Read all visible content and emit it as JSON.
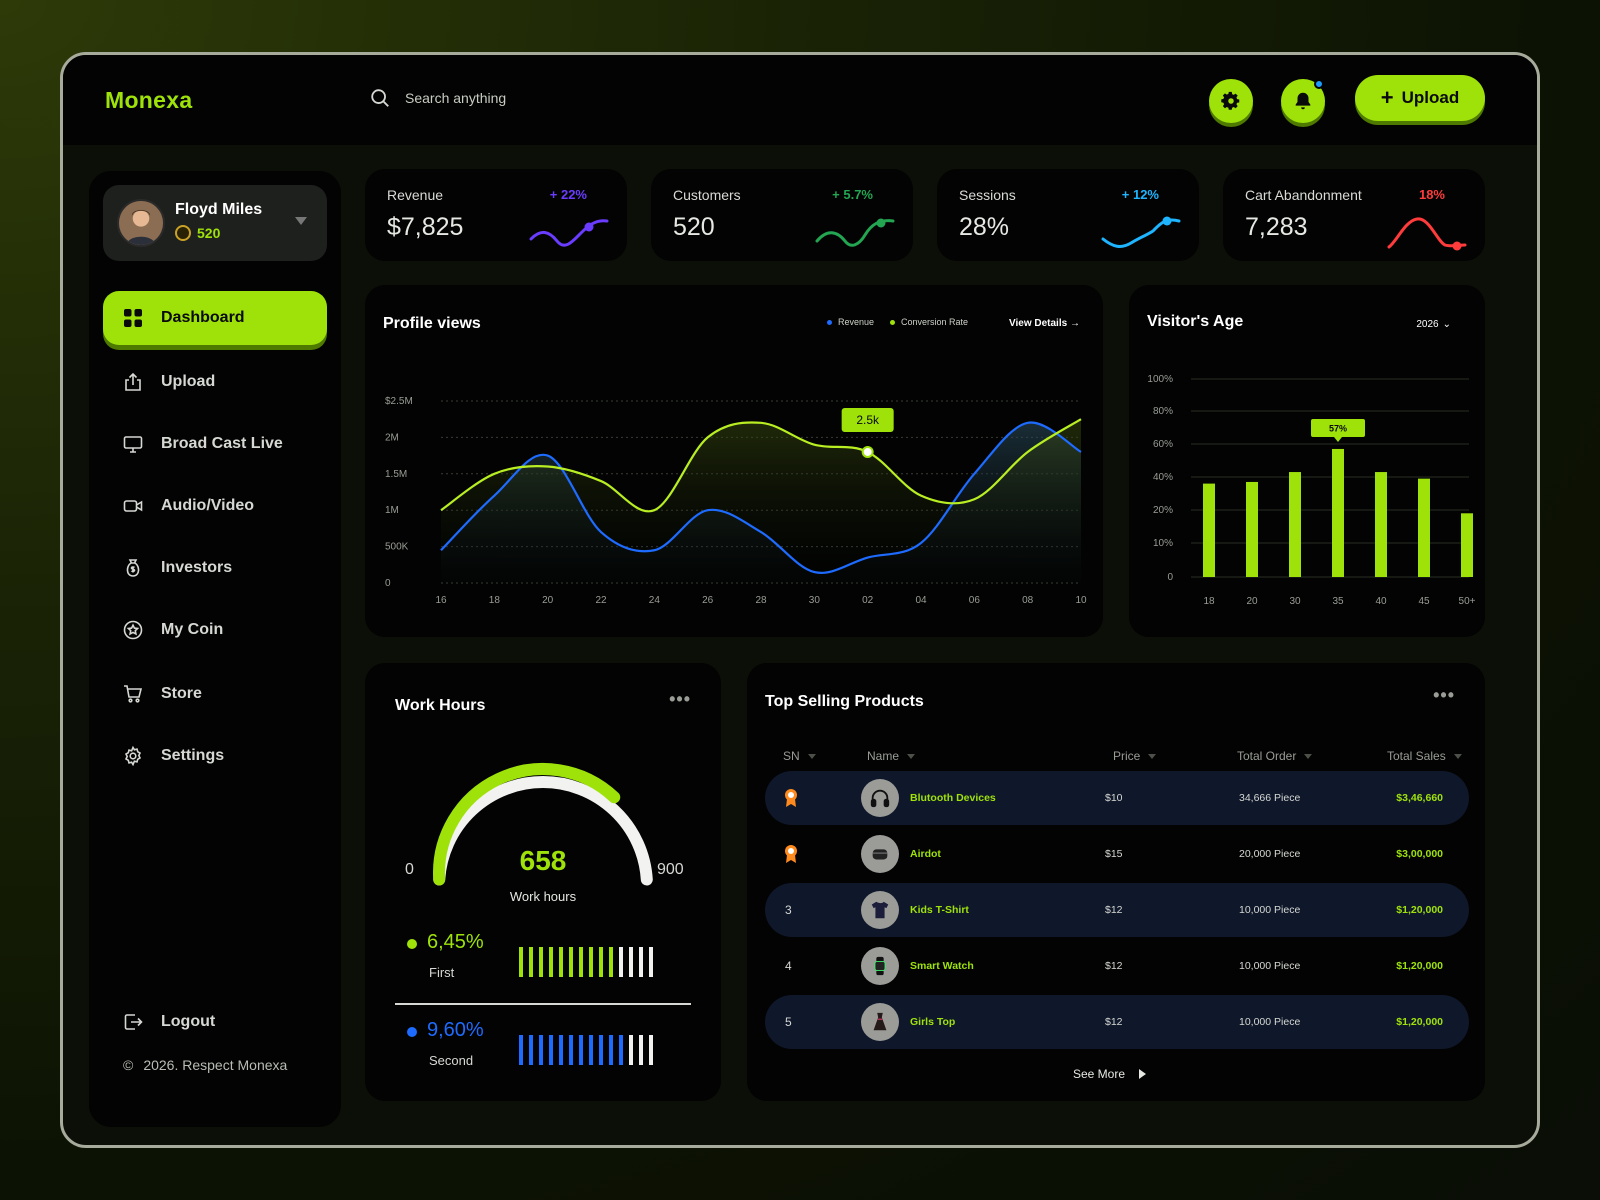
{
  "brand": "Monexa",
  "search": {
    "placeholder": "Search anything"
  },
  "header": {
    "upload_label": "Upload"
  },
  "colors": {
    "accent": "#9ee20a",
    "blue": "#1e6bff",
    "red": "#ff3b3b",
    "cyan": "#1eb4ff",
    "violet": "#6a3cff",
    "green": "#23a552"
  },
  "profile": {
    "name": "Floyd Miles",
    "coins": "520"
  },
  "nav": [
    {
      "label": "Dashboard",
      "icon": "grid-icon",
      "active": true
    },
    {
      "label": "Upload",
      "icon": "upload-icon"
    },
    {
      "label": "Broad Cast Live",
      "icon": "monitor-icon"
    },
    {
      "label": "Audio/Video",
      "icon": "video-icon"
    },
    {
      "label": "Investors",
      "icon": "money-bag-icon"
    },
    {
      "label": "My Coin",
      "icon": "coin-star-icon"
    },
    {
      "label": "Store",
      "icon": "cart-icon"
    },
    {
      "label": "Settings",
      "icon": "gear-icon"
    }
  ],
  "logout_label": "Logout",
  "copyright": "2026. Respect Monexa",
  "stats": [
    {
      "label": "Revenue",
      "value": "$7,825",
      "change": "+ 22%",
      "color": "#6a3cff"
    },
    {
      "label": "Customers",
      "value": "520",
      "change": "+ 5.7%",
      "color": "#23a552"
    },
    {
      "label": "Sessions",
      "value": "28%",
      "change": "+ 12%",
      "color": "#1eb4ff"
    },
    {
      "label": "Cart Abandonment",
      "value": "7,283",
      "change": "18%",
      "color": "#ff3b3b"
    }
  ],
  "profile_views": {
    "title": "Profile views",
    "legend": [
      "Revenue",
      "Conversion Rate"
    ],
    "view_details": "View Details",
    "tooltip": "2.5k"
  },
  "visitors_age": {
    "title": "Visitor's Age",
    "year": "2026",
    "tooltip": "57%"
  },
  "chart_data": [
    {
      "type": "area",
      "title": "Profile views",
      "x": [
        "16",
        "18",
        "20",
        "22",
        "24",
        "26",
        "28",
        "30",
        "02",
        "04",
        "06",
        "08",
        "10"
      ],
      "y_ticks": [
        "0",
        "500K",
        "1M",
        "1.5M",
        "2M",
        "$2.5M"
      ],
      "ylim": [
        0,
        2500000
      ],
      "series": [
        {
          "name": "Revenue",
          "values": [
            450000,
            1200000,
            1750000,
            700000,
            450000,
            1000000,
            700000,
            150000,
            350000,
            550000,
            1500000,
            2200000,
            1800000
          ]
        },
        {
          "name": "Conversion Rate",
          "values": [
            1000000,
            1500000,
            1600000,
            1400000,
            1000000,
            2000000,
            2200000,
            1900000,
            1800000,
            1200000,
            1150000,
            1800000,
            2250000
          ]
        }
      ],
      "legend": "top-right",
      "grid": true
    },
    {
      "type": "bar",
      "title": "Visitor's Age",
      "categories": [
        "18",
        "20",
        "30",
        "35",
        "40",
        "45",
        "50+"
      ],
      "values": [
        36,
        37,
        43,
        57,
        43,
        39,
        19
      ],
      "y_ticks": [
        "0",
        "10%",
        "20%",
        "40%",
        "60%",
        "80%",
        "100%"
      ],
      "ylim": [
        0,
        100
      ],
      "grid": true
    }
  ],
  "work_hours": {
    "title": "Work Hours",
    "value": "658",
    "label": "Work hours",
    "min": "0",
    "max": "900",
    "progress": 0.731,
    "first": {
      "percent": "6,45%",
      "label": "First",
      "filled": 10,
      "total": 14
    },
    "second": {
      "percent": "9,60%",
      "label": "Second",
      "filled": 11,
      "total": 14
    }
  },
  "top_products": {
    "title": "Top Selling Products",
    "columns": [
      "SN",
      "Name",
      "Price",
      "Total Order",
      "Total Sales"
    ],
    "rows": [
      {
        "sn": "",
        "badge": "medal-icon",
        "icon": "headphones-icon",
        "name": "Blutooth Devices",
        "price": "$10",
        "orders": "34,666 Piece",
        "sales": "$3,46,660"
      },
      {
        "sn": "",
        "badge": "medal-icon",
        "icon": "earbuds-case-icon",
        "name": "Airdot",
        "price": "$15",
        "orders": "20,000 Piece",
        "sales": "$3,00,000"
      },
      {
        "sn": "3",
        "icon": "tshirt-icon",
        "name": "Kids T-Shirt",
        "price": "$12",
        "orders": "10,000 Piece",
        "sales": "$1,20,000"
      },
      {
        "sn": "4",
        "icon": "smartwatch-icon",
        "name": "Smart Watch",
        "price": "$12",
        "orders": "10,000 Piece",
        "sales": "$1,20,000"
      },
      {
        "sn": "5",
        "icon": "dress-icon",
        "name": "Girls Top",
        "price": "$12",
        "orders": "10,000 Piece",
        "sales": "$1,20,000"
      }
    ],
    "see_more": "See More"
  }
}
